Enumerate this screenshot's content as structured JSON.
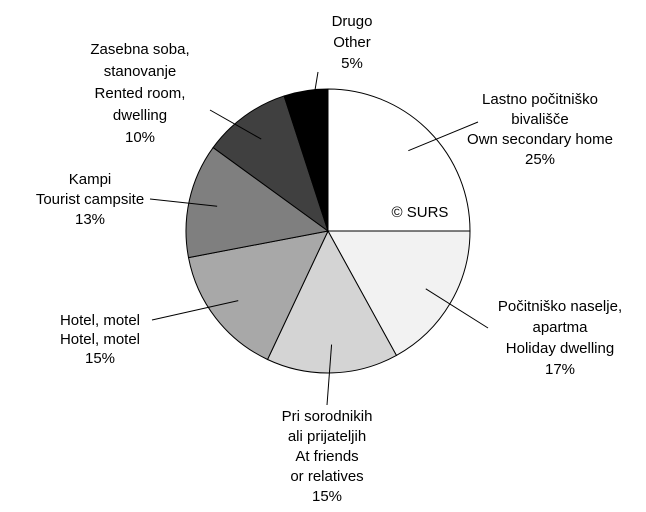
{
  "chart_data": {
    "type": "pie",
    "categories": [
      [
        "Lastno počitniško",
        "bivališče",
        "Own secondary home"
      ],
      [
        "Počitniško naselje,",
        "apartma",
        "Holiday dwelling"
      ],
      [
        "Pri sorodnikih",
        "ali prijateljih",
        "At friends",
        "or relatives"
      ],
      [
        "Hotel, motel",
        "Hotel, motel"
      ],
      [
        "Kampi",
        "Tourist campsite"
      ],
      [
        "Zasebna soba,",
        "stanovanje",
        "Rented room,",
        "dwelling"
      ],
      [
        "Drugo",
        "Other"
      ]
    ],
    "values": [
      25,
      17,
      15,
      15,
      13,
      10,
      5
    ],
    "value_labels": [
      "25%",
      "17%",
      "15%",
      "15%",
      "13%",
      "10%",
      "5%"
    ],
    "colors": [
      "#ffffff",
      "#f2f2f2",
      "#d4d4d4",
      "#a8a8a8",
      "#7f7f7f",
      "#404040",
      "#000000"
    ],
    "annotation": "© SURS"
  }
}
